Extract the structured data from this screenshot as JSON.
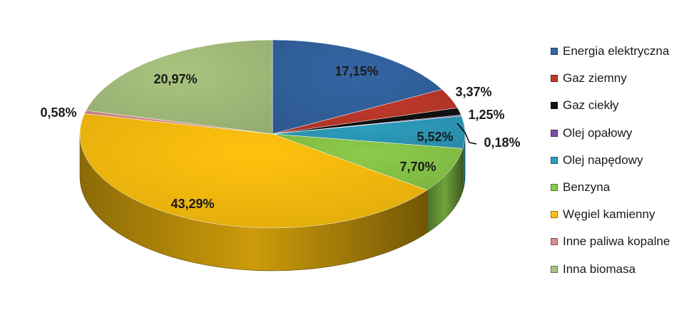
{
  "chart_data": {
    "type": "pie",
    "title": "",
    "legend_position": "right",
    "slices": [
      {
        "name": "Energia elektryczna",
        "value": 17.15,
        "label": "17,15%",
        "color": "#3465A4"
      },
      {
        "name": "Gaz ziemny",
        "value": 3.37,
        "label": "3,37%",
        "color": "#C0392B"
      },
      {
        "name": "Gaz ciekły",
        "value": 1.25,
        "label": "1,25%",
        "color": "#111111"
      },
      {
        "name": "Olej opałowy",
        "value": 0.18,
        "label": "0,18%",
        "color": "#7B4FA8"
      },
      {
        "name": "Olej napędowy",
        "value": 5.52,
        "label": "5,52%",
        "color": "#2E9DBE"
      },
      {
        "name": "Benzyna",
        "value": 7.7,
        "label": "7,70%",
        "color": "#8CCB4A"
      },
      {
        "name": "Węgiel kamienny",
        "value": 43.29,
        "label": "43,29%",
        "color": "#FFC20E"
      },
      {
        "name": "Inne paliwa kopalne",
        "value": 0.58,
        "label": "0,58%",
        "color": "#D98C8C"
      },
      {
        "name": "Inna biomasa",
        "value": 20.97,
        "label": "20,97%",
        "color": "#A9C47F"
      }
    ]
  }
}
